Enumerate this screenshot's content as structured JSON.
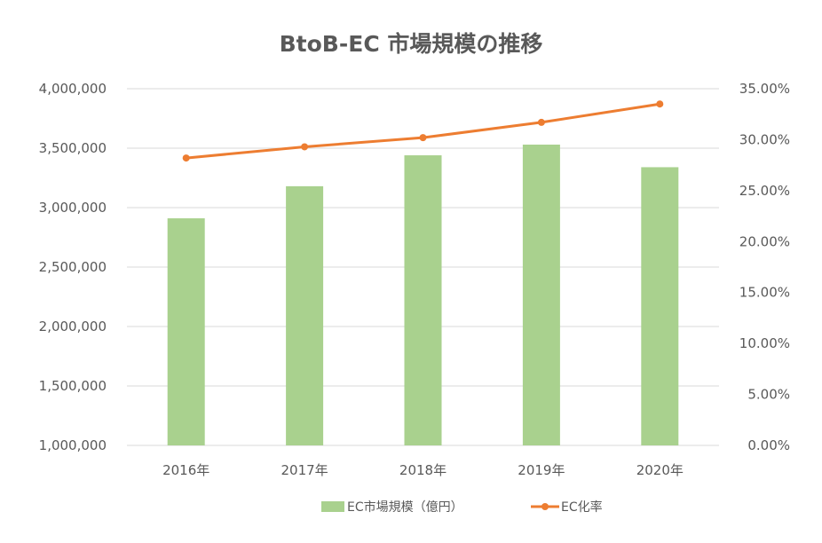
{
  "chart_data": {
    "type": "bar",
    "title": "BtoB-EC 市場規模の推移",
    "categories": [
      "2016年",
      "2017年",
      "2018年",
      "2019年",
      "2020年"
    ],
    "series": [
      {
        "name": "EC市場規模（億円）",
        "type": "bar",
        "axis": "left",
        "color": "#a9d18e",
        "values": [
          2910000,
          3180000,
          3440000,
          3530000,
          3340000
        ]
      },
      {
        "name": "EC化率",
        "type": "line",
        "axis": "right",
        "color": "#ed7d31",
        "values": [
          28.2,
          29.3,
          30.2,
          31.7,
          33.5
        ]
      }
    ],
    "y_left": {
      "ylim": [
        1000000,
        4000000
      ],
      "ticks": [
        1000000,
        1500000,
        2000000,
        2500000,
        3000000,
        3500000,
        4000000
      ],
      "tick_labels": [
        "1,000,000",
        "1,500,000",
        "2,000,000",
        "2,500,000",
        "3,000,000",
        "3,500,000",
        "4,000,000"
      ]
    },
    "y_right": {
      "ylim": [
        0,
        35
      ],
      "ticks": [
        0,
        5,
        10,
        15,
        20,
        25,
        30,
        35
      ],
      "tick_labels": [
        "0.00%",
        "5.00%",
        "10.00%",
        "15.00%",
        "20.00%",
        "25.00%",
        "30.00%",
        "35.00%"
      ]
    },
    "grid": true,
    "legend_position": "bottom"
  }
}
